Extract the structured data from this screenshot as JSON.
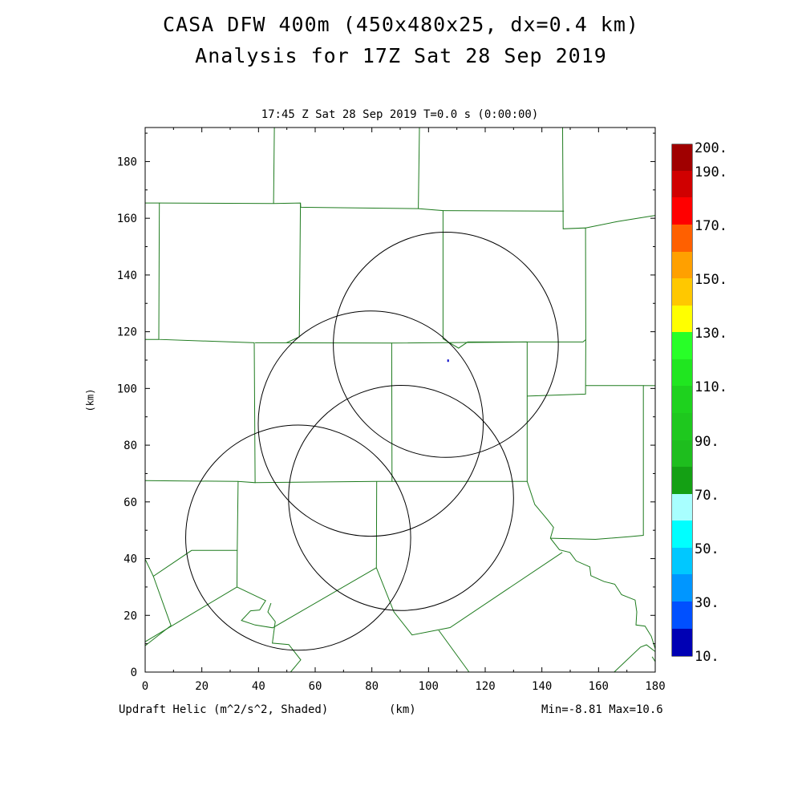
{
  "title": {
    "line1": "CASA DFW 400m (450x480x25, dx=0.4 km)",
    "line2": "Analysis for 17Z Sat 28 Sep 2019"
  },
  "subtitle": "17:45 Z Sat 28 Sep 2019    T=0.0 s (0:00:00)",
  "footer": {
    "left": "Updraft Helic (m^2/s^2, Shaded)",
    "center": "(km)",
    "right": "Min=-8.81 Max=10.6"
  },
  "colors": {
    "boundary": "#1e7b1e",
    "radar_ring": "#000000",
    "frame": "#000000",
    "data_point": "#0000c8"
  },
  "chart_data": {
    "type": "map",
    "xlabel": "(km)",
    "ylabel": "(km)",
    "xlim": [
      0,
      180
    ],
    "ylim": [
      0,
      192
    ],
    "x_ticks": [
      "0",
      "20",
      "40",
      "60",
      "80",
      "100",
      "120",
      "140",
      "160",
      "180"
    ],
    "y_ticks": [
      "0",
      "20",
      "40",
      "60",
      "80",
      "100",
      "120",
      "140",
      "160",
      "180"
    ],
    "radar_rings": [
      {
        "cx": 106.1,
        "cy": 115.4,
        "r": 39.7
      },
      {
        "cx": 79.6,
        "cy": 87.6,
        "r": 39.7
      },
      {
        "cx": 54.0,
        "cy": 47.4,
        "r": 39.7
      },
      {
        "cx": 90.3,
        "cy": 61.4,
        "r": 39.7
      }
    ],
    "data_points": [
      {
        "x": 106.9,
        "y": 109.8,
        "value": 10.6
      }
    ],
    "boundaries": [
      [
        [
          0,
          165.4
        ],
        [
          5,
          165.4
        ],
        [
          4.8,
          117.3
        ],
        [
          38.5,
          116.1
        ],
        [
          38.8,
          66.8
        ],
        [
          32.8,
          67.2
        ],
        [
          32.5,
          42.9
        ],
        [
          16.4,
          42.9
        ],
        [
          2.9,
          33.8
        ],
        [
          0,
          39.8
        ]
      ],
      [
        [
          0,
          117.3
        ],
        [
          4.8,
          117.3
        ]
      ],
      [
        [
          0,
          67.5
        ],
        [
          32.8,
          67.2
        ]
      ],
      [
        [
          5,
          165.4
        ],
        [
          45.3,
          165.2
        ],
        [
          54.8,
          165.4
        ],
        [
          54.4,
          118.2
        ],
        [
          49.8,
          116.1
        ]
      ],
      [
        [
          45.6,
          192
        ],
        [
          45.3,
          165.2
        ]
      ],
      [
        [
          54.8,
          165.4
        ],
        [
          54.9,
          163.9
        ],
        [
          96.3,
          163.4
        ],
        [
          105.1,
          162.7
        ],
        [
          105.1,
          117.5
        ],
        [
          110.6,
          114.2
        ],
        [
          113.8,
          116.4
        ],
        [
          154.5,
          116.4
        ],
        [
          155.5,
          117.2
        ],
        [
          155.4,
          156.6
        ],
        [
          147.5,
          156.3
        ],
        [
          147.3,
          192
        ]
      ],
      [
        [
          96.8,
          192
        ],
        [
          96.4,
          163.4
        ]
      ],
      [
        [
          105.1,
          162.7
        ],
        [
          147.8,
          162.5
        ]
      ],
      [
        [
          38.8,
          116.1
        ],
        [
          87.0,
          116.0
        ],
        [
          87.1,
          67.2
        ],
        [
          81.7,
          67.2
        ],
        [
          38.8,
          66.8
        ]
      ],
      [
        [
          87.0,
          116.0
        ],
        [
          134.8,
          116.4
        ],
        [
          134.8,
          67.2
        ],
        [
          87.1,
          67.2
        ]
      ],
      [
        [
          134.8,
          97.3
        ],
        [
          155.4,
          98.0
        ],
        [
          155.5,
          117.2
        ]
      ],
      [
        [
          155.4,
          101.0
        ],
        [
          175.8,
          101.0
        ],
        [
          175.8,
          48.2
        ],
        [
          171.4,
          47.8
        ],
        [
          158.9,
          46.8
        ],
        [
          143.0,
          47.2
        ]
      ],
      [
        [
          175.8,
          101.0
        ],
        [
          180,
          101.0
        ]
      ],
      [
        [
          155.4,
          156.6
        ],
        [
          166.8,
          158.9
        ],
        [
          180,
          161.0
        ]
      ],
      [
        [
          134.8,
          67.2
        ],
        [
          137.5,
          59.1
        ],
        [
          142.1,
          53.6
        ],
        [
          144.1,
          51.0
        ],
        [
          143.0,
          47.2
        ],
        [
          146.2,
          43.1
        ],
        [
          149.9,
          42.2
        ],
        [
          152.1,
          39.2
        ],
        [
          156.9,
          37.1
        ],
        [
          157.3,
          34.0
        ],
        [
          162.0,
          31.9
        ],
        [
          165.7,
          31.0
        ],
        [
          168.1,
          27.3
        ],
        [
          172.9,
          25.4
        ],
        [
          173.5,
          21.2
        ],
        [
          173.2,
          16.6
        ],
        [
          176.4,
          16.2
        ],
        [
          178.6,
          12.6
        ],
        [
          180,
          8.2
        ]
      ],
      [
        [
          81.7,
          67.2
        ],
        [
          81.6,
          36.8
        ],
        [
          87.8,
          21.2
        ],
        [
          94.2,
          13.1
        ],
        [
          107.6,
          15.7
        ],
        [
          147.2,
          42.2
        ]
      ],
      [
        [
          0,
          10.7
        ],
        [
          32.4,
          30.0
        ],
        [
          42.5,
          25.2
        ],
        [
          40.4,
          21.9
        ],
        [
          37.2,
          21.6
        ],
        [
          34.0,
          18.2
        ],
        [
          38.8,
          16.6
        ],
        [
          45.0,
          15.6
        ],
        [
          81.6,
          36.8
        ]
      ],
      [
        [
          32.5,
          42.9
        ],
        [
          32.4,
          30.0
        ]
      ],
      [
        [
          0,
          9.3
        ],
        [
          9.1,
          16.4
        ],
        [
          2.9,
          33.8
        ]
      ],
      [
        [
          44.4,
          24.3
        ],
        [
          43.3,
          21.2
        ],
        [
          45.9,
          17.8
        ],
        [
          44.9,
          10.2
        ],
        [
          50.7,
          9.7
        ],
        [
          54.9,
          4.3
        ],
        [
          51.3,
          0
        ]
      ],
      [
        [
          103.6,
          14.7
        ],
        [
          114.3,
          0
        ]
      ],
      [
        [
          180,
          7.2
        ],
        [
          176.9,
          9.6
        ],
        [
          174.8,
          8.8
        ],
        [
          165.5,
          0
        ]
      ],
      [
        [
          180,
          3.7
        ],
        [
          178.9,
          5.4
        ]
      ]
    ]
  }
}
